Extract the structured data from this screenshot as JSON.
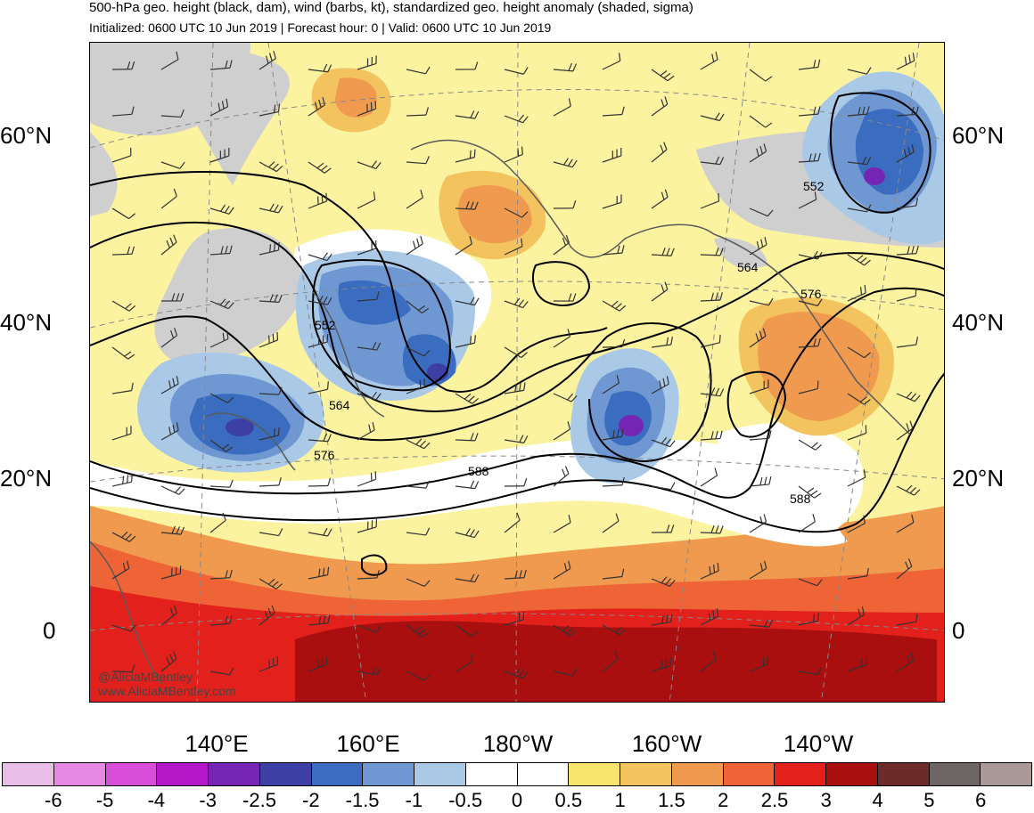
{
  "header": {
    "title": "500-hPa geo. height (black, dam), wind (barbs, kt), standardized geo. height anomaly (shaded, sigma)",
    "subtitle": "Initialized: 0600 UTC 10 Jun 2019 | Forecast hour: 0 | Valid: 0600 UTC 10 Jun 2019"
  },
  "map": {
    "lat_labels": [
      "60°N",
      "40°N",
      "20°N",
      "0"
    ],
    "lon_labels": [
      "140°E",
      "160°E",
      "180°W",
      "160°W",
      "140°W"
    ],
    "contour_labels": [
      "552",
      "552",
      "564",
      "564",
      "576",
      "576",
      "588",
      "588"
    ],
    "credit_handle": "@AliciaMBentley",
    "credit_url": "www.AliciaMBentley.com"
  },
  "colorbar": {
    "colors": [
      "#e8bde8",
      "#e589e5",
      "#d64fd6",
      "#b417c8",
      "#7525b3",
      "#3e3fa5",
      "#3a6cbf",
      "#6f98d3",
      "#a9c9e6",
      "#ffffff",
      "#ffffff",
      "#f8e36c",
      "#f3c35f",
      "#f09a4f",
      "#ee6437",
      "#e2211c",
      "#a90f0f",
      "#6e2a28",
      "#6e6565",
      "#a99a99"
    ],
    "labels": [
      "-6",
      "-5",
      "-4",
      "-3",
      "-2.5",
      "-2",
      "-1.5",
      "-1",
      "-0.5",
      "0",
      "0.5",
      "1",
      "1.5",
      "2",
      "2.5",
      "3",
      "4",
      "5",
      "6"
    ]
  }
}
